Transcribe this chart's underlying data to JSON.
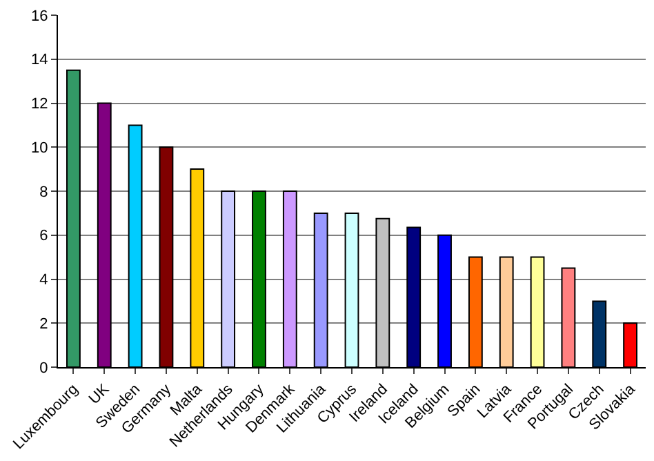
{
  "chart_data": {
    "type": "bar",
    "categories": [
      "Luxembourg",
      "UK",
      "Sweden",
      "Germany",
      "Malta",
      "Netherlands",
      "Hungary",
      "Denmark",
      "Lithuania",
      "Cyprus",
      "Ireland",
      "Iceland",
      "Belgium",
      "Spain",
      "Latvia",
      "France",
      "Portugal",
      "Czech",
      "Slovakia"
    ],
    "values": [
      13.5,
      12,
      11,
      10,
      9,
      8,
      8,
      8,
      7,
      7,
      6.75,
      6.35,
      6,
      5,
      5,
      5,
      4.5,
      3,
      2
    ],
    "colors": [
      "#339966",
      "#800080",
      "#00ccff",
      "#800000",
      "#ffcc00",
      "#ccccff",
      "#008000",
      "#cc99ff",
      "#9999ff",
      "#ccffff",
      "#c0c0c0",
      "#000080",
      "#0000ff",
      "#ff6600",
      "#ffcc99",
      "#ffff99",
      "#ff8080",
      "#003366",
      "#ff0000"
    ],
    "ylim": [
      0,
      16
    ],
    "yticks": [
      0,
      2,
      4,
      6,
      8,
      10,
      12,
      14,
      16
    ],
    "grid": "y"
  }
}
